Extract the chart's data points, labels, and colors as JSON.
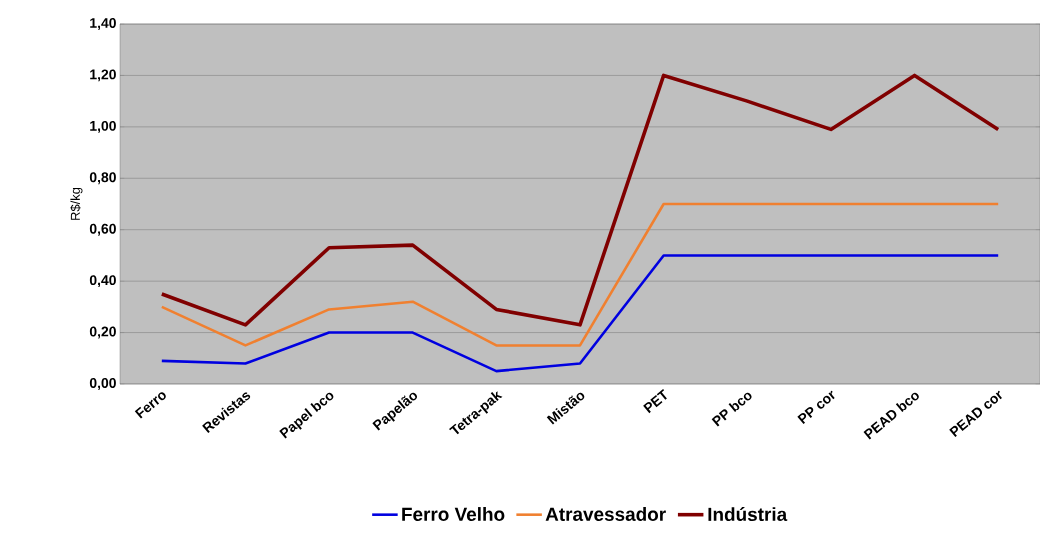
{
  "chart_data": {
    "type": "line",
    "ylabel": "R$/kg",
    "categories": [
      "Ferro",
      "Revistas",
      "Papel bco",
      "Papelão",
      "Tetra-pak",
      "Mistão",
      "PET",
      "PP bco",
      "PP cor",
      "PEAD bco",
      "PEAD cor"
    ],
    "series": [
      {
        "name": "Ferro Velho",
        "color": "#0000e0",
        "values": [
          0.09,
          0.08,
          0.2,
          0.2,
          0.05,
          0.08,
          0.5,
          0.5,
          0.5,
          0.5,
          0.5
        ]
      },
      {
        "name": "Atravessador",
        "color": "#f08030",
        "values": [
          0.3,
          0.15,
          0.29,
          0.32,
          0.15,
          0.15,
          0.7,
          0.7,
          0.7,
          0.7,
          0.7
        ]
      },
      {
        "name": "Indústria",
        "color": "#800000",
        "values": [
          0.35,
          0.23,
          0.53,
          0.54,
          0.29,
          0.23,
          1.2,
          1.1,
          0.99,
          1.2,
          0.99
        ]
      }
    ],
    "ylim": [
      0,
      1.4
    ],
    "yticks": [
      {
        "value": 0,
        "label": "0,00"
      },
      {
        "value": 0.2,
        "label": "0,20"
      },
      {
        "value": 0.4,
        "label": "0,40"
      },
      {
        "value": 0.6,
        "label": "0,60"
      },
      {
        "value": 0.8,
        "label": "0,80"
      },
      {
        "value": 1.0,
        "label": "1,00"
      },
      {
        "value": 1.2,
        "label": "1,20"
      },
      {
        "value": 1.4,
        "label": "1,40"
      }
    ],
    "grid": "y",
    "legend": "bottom",
    "marker": "none",
    "line_style": "solid"
  }
}
